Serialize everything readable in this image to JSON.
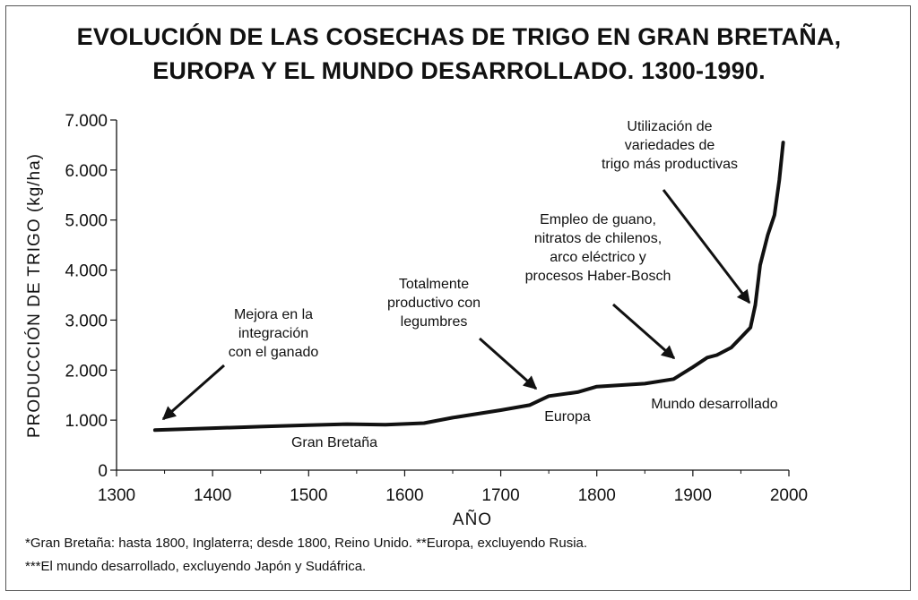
{
  "chart_data": {
    "type": "line",
    "title_lines": [
      "EVOLUCIÓN DE LAS COSECHAS DE TRIGO EN GRAN BRETAÑA,",
      "EUROPA Y EL MUNDO DESARROLLADO. 1300-1990."
    ],
    "xlabel": "AÑO",
    "ylabel": "PRODUCCIÓN DE TRIGO (kg/ha)",
    "xlim": [
      1300,
      2000
    ],
    "ylim": [
      0,
      7000
    ],
    "x_ticks": [
      1300,
      1400,
      1500,
      1600,
      1700,
      1800,
      1900,
      2000
    ],
    "x_tick_labels": [
      "1300",
      "1400",
      "1500",
      "1600",
      "1700",
      "1800",
      "1900",
      "2000"
    ],
    "y_ticks": [
      0,
      1000,
      2000,
      3000,
      4000,
      5000,
      6000,
      7000
    ],
    "y_tick_labels": [
      "0",
      "1.000",
      "2.000",
      "3.000",
      "4.000",
      "5.000",
      "6.000",
      "7.000"
    ],
    "grid": false,
    "series": [
      {
        "x": [
          1340,
          1400,
          1450,
          1500,
          1540,
          1580,
          1620,
          1650,
          1700,
          1730,
          1750,
          1780,
          1800,
          1850,
          1880,
          1900,
          1915,
          1925,
          1940,
          1950,
          1960,
          1965,
          1970,
          1978,
          1985,
          1990,
          1994
        ],
        "y": [
          800,
          840,
          870,
          900,
          920,
          910,
          940,
          1050,
          1200,
          1300,
          1480,
          1560,
          1670,
          1730,
          1820,
          2060,
          2250,
          2300,
          2450,
          2650,
          2850,
          3300,
          4100,
          4700,
          5100,
          5800,
          6550
        ]
      }
    ],
    "segment_labels": [
      "Gran Bretaña",
      "Europa",
      "Mundo desarrollado"
    ],
    "annotations": [
      {
        "lines": [
          "Mejora en la",
          "integración",
          "con el ganado"
        ]
      },
      {
        "lines": [
          "Totalmente",
          "productivo con",
          "legumbres"
        ]
      },
      {
        "lines": [
          "Empleo de guano,",
          "nitratos de chilenos,",
          "arco eléctrico y",
          "procesos Haber-Bosch"
        ]
      },
      {
        "lines": [
          "Utilización de",
          "variedades de",
          "trigo más productivas"
        ]
      }
    ],
    "footnotes": [
      "*Gran Bretaña: hasta 1800, Inglaterra; desde 1800, Reino Unido. **Europa, excluyendo Rusia.",
      "***El mundo desarrollado, excluyendo Japón y Sudáfrica."
    ],
    "line_color": "#111111"
  }
}
